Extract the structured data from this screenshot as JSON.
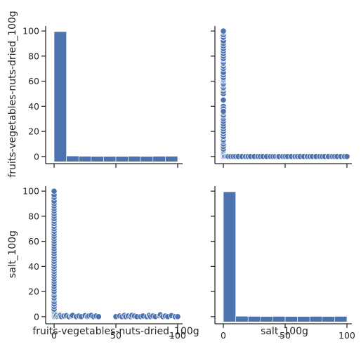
{
  "chart_data": {
    "type": "pairplot",
    "variables": [
      "fruits-vegetables-nuts-dried_100g",
      "salt_100g"
    ],
    "axis_range": [
      -4,
      104
    ],
    "ticks": [
      0,
      20,
      40,
      60,
      80,
      100
    ],
    "tick_labels": [
      "0",
      "20",
      "40",
      "60",
      "80",
      "100"
    ],
    "x_ticks": [
      0,
      50,
      100
    ],
    "x_tick_labels": [
      "0",
      "50",
      "100"
    ],
    "grid": false,
    "color": "#4c72b0",
    "panels": [
      {
        "row": 0,
        "col": 0,
        "type": "histogram",
        "variable": "fruits-vegetables-nuts-dried_100g",
        "bin_edges": [
          0,
          10,
          20,
          30,
          40,
          50,
          60,
          70,
          80,
          90,
          100
        ],
        "relative_heights": [
          99,
          0.4,
          0.2,
          0.1,
          0.1,
          0.1,
          0.2,
          0.1,
          0.2,
          0.2
        ]
      },
      {
        "row": 0,
        "col": 1,
        "type": "scatter",
        "xvar": "salt_100g",
        "yvar": "fruits-vegetables-nuts-dried_100g",
        "x": [
          0,
          0,
          0,
          0,
          0,
          0,
          0,
          0,
          0,
          0,
          0,
          0,
          0,
          0,
          0,
          0,
          0,
          0,
          0,
          0,
          0,
          0,
          0,
          0,
          0,
          0,
          0,
          0,
          0,
          0,
          0,
          0,
          0,
          0,
          0,
          0,
          0,
          0,
          0,
          0,
          0,
          0,
          0,
          0,
          0,
          0,
          0,
          0,
          0,
          0,
          0,
          0,
          0,
          0,
          0,
          0,
          1,
          2,
          3,
          4,
          6,
          8,
          10,
          12,
          15,
          18,
          20,
          22,
          25,
          28,
          30,
          32,
          35,
          38,
          40,
          42,
          44,
          45,
          48,
          50,
          52,
          55,
          58,
          60,
          62,
          65,
          68,
          70,
          72,
          75,
          78,
          80,
          82,
          85,
          88,
          90,
          92,
          95,
          98,
          100
        ],
        "y": [
          0,
          1,
          2,
          3,
          4,
          5,
          6,
          8,
          10,
          12,
          13,
          15,
          16,
          18,
          20,
          22,
          24,
          26,
          28,
          30,
          32,
          33,
          35,
          50,
          52,
          54,
          55,
          57,
          58,
          60,
          61,
          62,
          63,
          65,
          67,
          70,
          72,
          74,
          75,
          77,
          78,
          80,
          82,
          84,
          86,
          88,
          90,
          92,
          95,
          97,
          99,
          100,
          45,
          40,
          38,
          36,
          0,
          0,
          0,
          0,
          0,
          0,
          0,
          0,
          0,
          0,
          0,
          0,
          0,
          0,
          0,
          0,
          0,
          0,
          0,
          0,
          0,
          0,
          0,
          0,
          0,
          0,
          0,
          0,
          0,
          0,
          0,
          0,
          0,
          0,
          0,
          0,
          0,
          0,
          0,
          0,
          0,
          0,
          0,
          0
        ]
      },
      {
        "row": 1,
        "col": 0,
        "type": "scatter",
        "xvar": "fruits-vegetables-nuts-dried_100g",
        "yvar": "salt_100g",
        "x": [
          0,
          0,
          0,
          0,
          0,
          0,
          0,
          0,
          0,
          0,
          0,
          0,
          0,
          0,
          0,
          0,
          0,
          0,
          0,
          0,
          0,
          0,
          0,
          0,
          0,
          0,
          0,
          0,
          0,
          0,
          0,
          0,
          0,
          0,
          0,
          0,
          0,
          0,
          0,
          0,
          0,
          0,
          0,
          0,
          0,
          0,
          0,
          0,
          0,
          0,
          0,
          0,
          0,
          0,
          1,
          2,
          3,
          4,
          5,
          6,
          8,
          10,
          12,
          14,
          15,
          18,
          20,
          22,
          25,
          27,
          28,
          30,
          32,
          34,
          36,
          50,
          53,
          55,
          57,
          58,
          60,
          62,
          63,
          65,
          67,
          70,
          72,
          75,
          77,
          78,
          80,
          82,
          85,
          86,
          88,
          90,
          92,
          95,
          98,
          100
        ],
        "y": [
          0,
          1,
          2,
          3,
          4,
          5,
          6,
          8,
          10,
          12,
          14,
          15,
          17,
          19,
          20,
          22,
          24,
          26,
          28,
          30,
          32,
          34,
          36,
          38,
          40,
          42,
          44,
          46,
          48,
          50,
          52,
          54,
          56,
          58,
          60,
          62,
          64,
          66,
          68,
          70,
          72,
          74,
          76,
          78,
          80,
          82,
          84,
          86,
          88,
          90,
          92,
          95,
          97,
          100,
          0.5,
          1,
          0,
          0.5,
          1,
          0,
          0.5,
          0.8,
          0,
          0.5,
          1,
          0,
          0.5,
          0,
          0.8,
          0,
          0.5,
          1,
          0,
          0.5,
          0,
          0,
          0.5,
          0,
          1,
          0,
          0.5,
          0,
          1,
          0.5,
          0,
          0,
          0.5,
          0,
          1,
          0,
          0.5,
          0,
          0.8,
          1.5,
          0,
          0.5,
          0,
          0.8,
          0,
          0
        ]
      },
      {
        "row": 1,
        "col": 1,
        "type": "histogram",
        "variable": "salt_100g",
        "bin_edges": [
          0,
          10,
          20,
          30,
          40,
          50,
          60,
          70,
          80,
          90,
          100
        ],
        "relative_heights": [
          99,
          0.3,
          0.2,
          0.1,
          0.2,
          0.1,
          0.1,
          0.2,
          0.1,
          0.2
        ]
      }
    ]
  }
}
